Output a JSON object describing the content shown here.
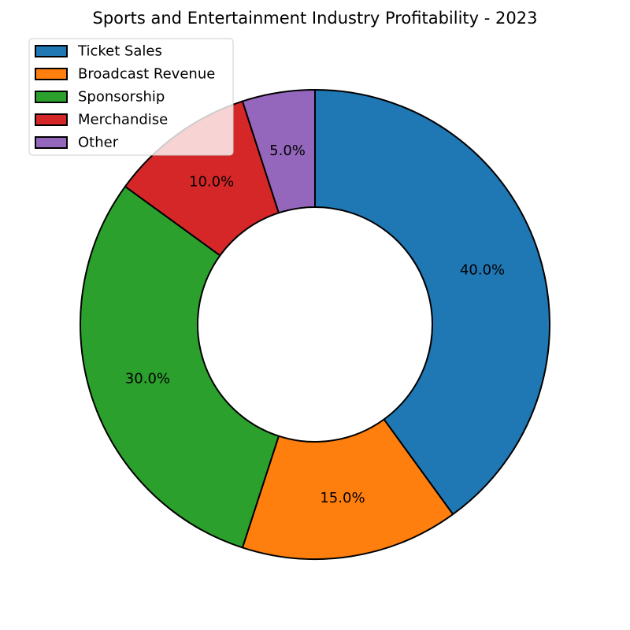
{
  "chart_data": {
    "type": "pie",
    "variant": "donut",
    "title": "Sports and Entertainment Industry Profitability - 2023",
    "categories": [
      "Ticket Sales",
      "Broadcast Revenue",
      "Sponsorship",
      "Merchandise",
      "Other"
    ],
    "values": [
      40,
      15,
      30,
      10,
      5
    ],
    "value_labels": [
      "40.0%",
      "15.0%",
      "30.0%",
      "10.0%",
      "5.0%"
    ],
    "colors": [
      "#1f77b4",
      "#ff7f0e",
      "#2ca02c",
      "#d62728",
      "#9467bd"
    ],
    "start_angle_deg": 90,
    "direction": "clockwise",
    "legend": {
      "placement": "top-left",
      "entries": [
        "Ticket Sales",
        "Broadcast Revenue",
        "Sponsorship",
        "Merchandise",
        "Other"
      ]
    }
  }
}
